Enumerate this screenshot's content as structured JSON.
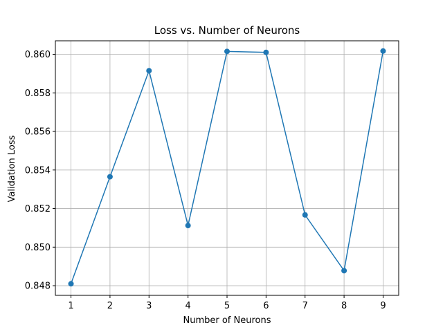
{
  "chart_data": {
    "type": "line",
    "title": "Loss vs. Number of Neurons",
    "xlabel": "Number of Neurons",
    "ylabel": "Validation Loss",
    "x": [
      1,
      2,
      3,
      4,
      5,
      6,
      7,
      8,
      9
    ],
    "x_ticks": [
      "1",
      "2",
      "3",
      "4",
      "5",
      "6",
      "7",
      "8",
      "9"
    ],
    "y_ticks": [
      "0.848",
      "0.850",
      "0.852",
      "0.854",
      "0.856",
      "0.858",
      "0.860"
    ],
    "y_tick_values": [
      0.848,
      0.85,
      0.852,
      0.854,
      0.856,
      0.858,
      0.86
    ],
    "xlim": [
      0.6,
      9.4
    ],
    "ylim": [
      0.8475,
      0.8607
    ],
    "grid": true,
    "legend": "none",
    "series": [
      {
        "values": [
          0.8481,
          0.85365,
          0.85915,
          0.85112,
          0.86015,
          0.8601,
          0.85167,
          0.84878,
          0.86017
        ],
        "color": "#1f77b4",
        "marker": "circle"
      }
    ]
  }
}
